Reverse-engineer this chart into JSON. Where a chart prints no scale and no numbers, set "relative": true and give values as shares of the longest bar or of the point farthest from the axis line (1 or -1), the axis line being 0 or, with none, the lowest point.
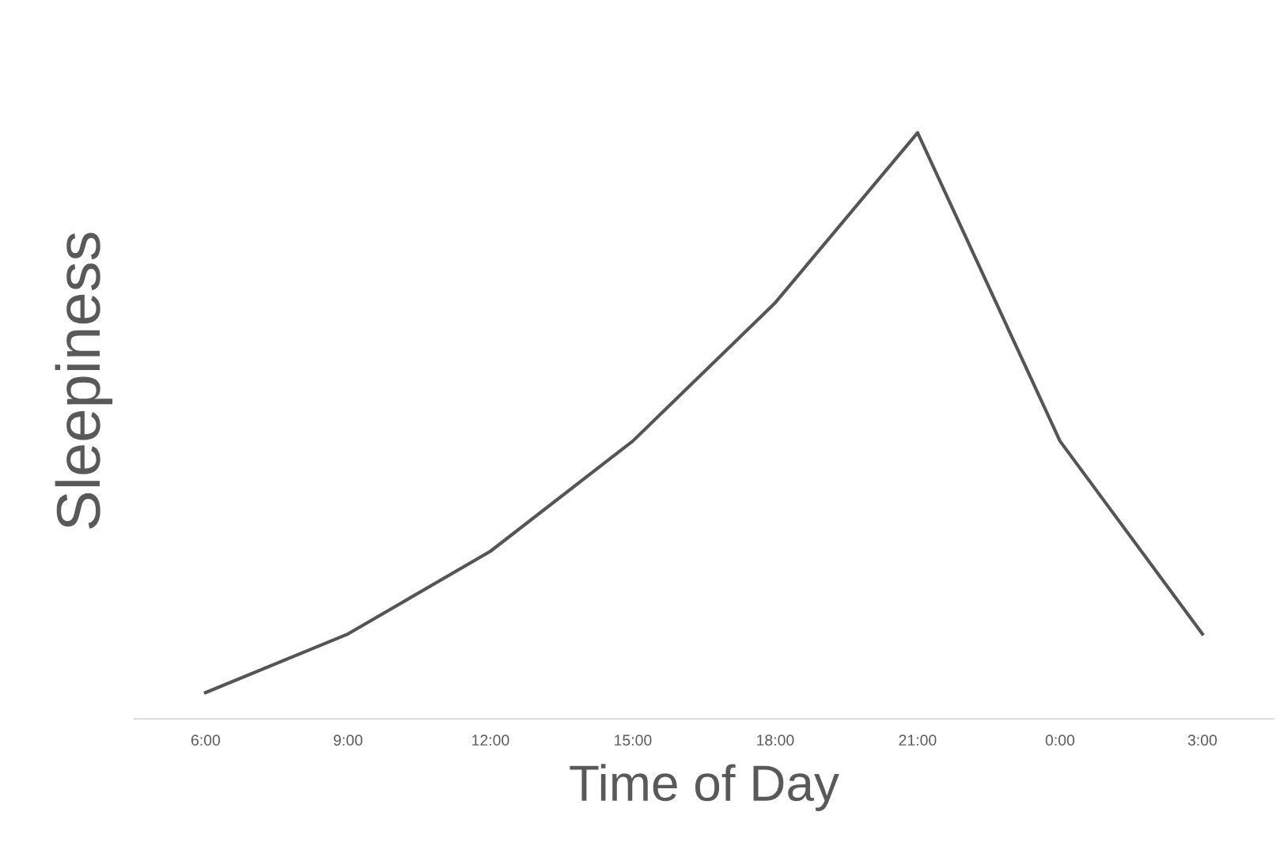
{
  "chart_data": {
    "type": "line",
    "relative": true,
    "xlabel": "Time of Day",
    "ylabel": "Sleepiness",
    "categories": [
      "6:00",
      "9:00",
      "12:00",
      "15:00",
      "18:00",
      "21:00",
      "0:00",
      "3:00"
    ],
    "series": [
      {
        "color": "#555555",
        "values": [
          0.045,
          0.145,
          0.286,
          0.474,
          0.71,
          1,
          0.474,
          0.145
        ]
      }
    ],
    "grid": false,
    "legend": false,
    "marker": "none",
    "line_style": "solid"
  }
}
